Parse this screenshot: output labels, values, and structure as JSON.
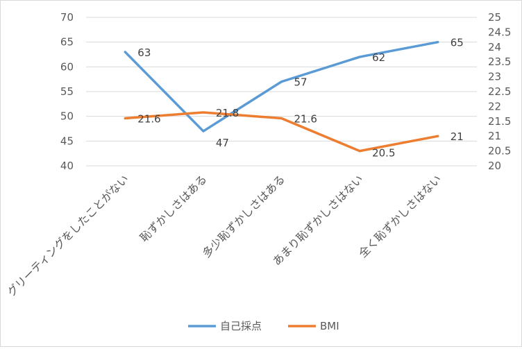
{
  "chart_data": {
    "type": "line",
    "categories": [
      "グリーティングをしたことがない",
      "恥ずかしさはある",
      "多少恥ずかしさはある",
      "あまり恥ずかしさはない",
      "全く恥ずかしさはない"
    ],
    "series": [
      {
        "name": "自己採点",
        "axis": "left",
        "color": "#5b9bd5",
        "values": [
          63,
          47,
          57,
          62,
          65
        ],
        "labels": [
          "63",
          "47",
          "57",
          "62",
          "65"
        ]
      },
      {
        "name": "BMI",
        "axis": "right",
        "color": "#ed7d31",
        "values": [
          21.6,
          21.8,
          21.6,
          20.5,
          21
        ],
        "labels": [
          "21.6",
          "21.8",
          "21.6",
          "20.5",
          "21"
        ]
      }
    ],
    "left_axis": {
      "min": 40,
      "max": 70,
      "ticks": [
        "40",
        "45",
        "50",
        "55",
        "60",
        "65",
        "70"
      ]
    },
    "right_axis": {
      "min": 20,
      "max": 25,
      "ticks": [
        "20",
        "20.5",
        "21",
        "21.5",
        "22",
        "22.5",
        "23",
        "23.5",
        "24",
        "24.5",
        "25"
      ]
    },
    "grid": true,
    "legend": "bottom"
  }
}
